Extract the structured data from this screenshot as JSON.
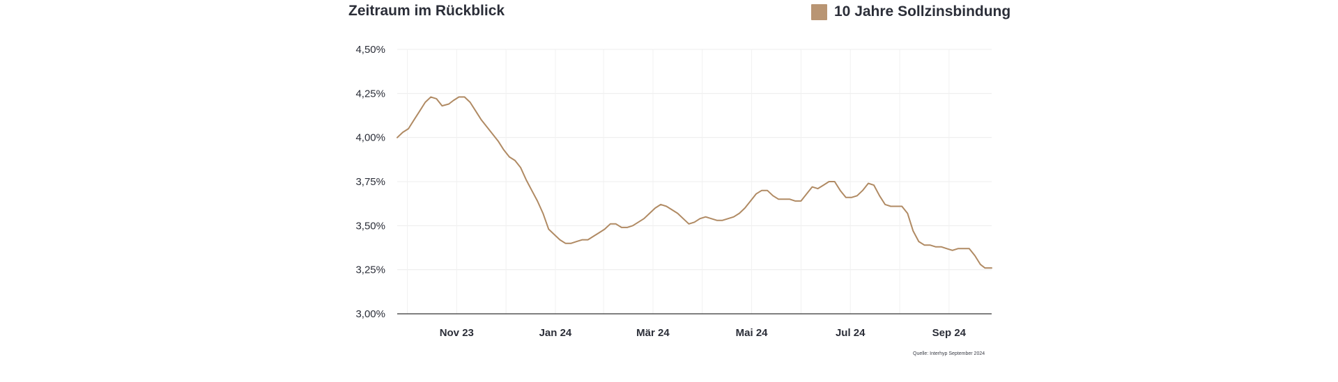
{
  "header": {
    "title": "Zeitraum im Rückblick"
  },
  "legend": {
    "label": "10 Jahre Sollzinsbindung",
    "color": "#b99573"
  },
  "source_note": "Quelle: Interhyp September 2024",
  "colors": {
    "line": "#b08a63",
    "grid": "#ececec",
    "axis": "#333333"
  },
  "chart_data": {
    "type": "line",
    "title": "Zeitraum im Rückblick",
    "xlabel": "",
    "ylabel": "",
    "x_unit": "weeks",
    "xlim": [
      0,
      53
    ],
    "ylim": [
      3.0,
      4.5
    ],
    "y_ticks": [
      3.0,
      3.25,
      3.5,
      3.75,
      4.0,
      4.25,
      4.5
    ],
    "y_tick_labels": [
      "3,00%",
      "3,25%",
      "3,50%",
      "3,75%",
      "4,00%",
      "4,25%",
      "4,50%"
    ],
    "x_tick_labels": [
      {
        "label": "Nov 23",
        "pos": 5.3
      },
      {
        "label": "Jan 24",
        "pos": 14.1
      },
      {
        "label": "Mär 24",
        "pos": 22.8
      },
      {
        "label": "Mai 24",
        "pos": 31.6
      },
      {
        "label": "Jul 24",
        "pos": 40.4
      },
      {
        "label": "Sep 24",
        "pos": 49.2
      }
    ],
    "grid": true,
    "legend_position": "top-right",
    "series": [
      {
        "name": "10 Jahre Sollzinsbindung",
        "color": "#b08a63",
        "points": [
          [
            0.0,
            4.0
          ],
          [
            0.5,
            4.03
          ],
          [
            1.0,
            4.05
          ],
          [
            1.5,
            4.1
          ],
          [
            2.0,
            4.15
          ],
          [
            2.5,
            4.2
          ],
          [
            3.0,
            4.23
          ],
          [
            3.5,
            4.22
          ],
          [
            4.0,
            4.18
          ],
          [
            4.6,
            4.19
          ],
          [
            5.0,
            4.21
          ],
          [
            5.5,
            4.23
          ],
          [
            6.0,
            4.23
          ],
          [
            6.5,
            4.2
          ],
          [
            7.0,
            4.15
          ],
          [
            7.5,
            4.1
          ],
          [
            8.0,
            4.06
          ],
          [
            8.5,
            4.02
          ],
          [
            9.0,
            3.98
          ],
          [
            9.5,
            3.93
          ],
          [
            10.0,
            3.89
          ],
          [
            10.5,
            3.87
          ],
          [
            11.0,
            3.83
          ],
          [
            11.5,
            3.76
          ],
          [
            12.0,
            3.7
          ],
          [
            12.5,
            3.64
          ],
          [
            13.0,
            3.57
          ],
          [
            13.5,
            3.48
          ],
          [
            14.0,
            3.45
          ],
          [
            14.5,
            3.42
          ],
          [
            15.0,
            3.4
          ],
          [
            15.5,
            3.4
          ],
          [
            16.0,
            3.41
          ],
          [
            16.5,
            3.42
          ],
          [
            17.0,
            3.42
          ],
          [
            17.5,
            3.44
          ],
          [
            18.0,
            3.46
          ],
          [
            18.5,
            3.48
          ],
          [
            19.0,
            3.51
          ],
          [
            19.5,
            3.51
          ],
          [
            20.0,
            3.49
          ],
          [
            20.5,
            3.49
          ],
          [
            21.0,
            3.5
          ],
          [
            21.5,
            3.52
          ],
          [
            22.0,
            3.54
          ],
          [
            22.5,
            3.57
          ],
          [
            23.0,
            3.6
          ],
          [
            23.5,
            3.62
          ],
          [
            24.0,
            3.61
          ],
          [
            24.5,
            3.59
          ],
          [
            25.0,
            3.57
          ],
          [
            25.5,
            3.54
          ],
          [
            26.0,
            3.51
          ],
          [
            26.5,
            3.52
          ],
          [
            27.0,
            3.54
          ],
          [
            27.5,
            3.55
          ],
          [
            28.0,
            3.54
          ],
          [
            28.5,
            3.53
          ],
          [
            29.0,
            3.53
          ],
          [
            29.5,
            3.54
          ],
          [
            30.0,
            3.55
          ],
          [
            30.5,
            3.57
          ],
          [
            31.0,
            3.6
          ],
          [
            31.5,
            3.64
          ],
          [
            32.0,
            3.68
          ],
          [
            32.5,
            3.7
          ],
          [
            33.0,
            3.7
          ],
          [
            33.5,
            3.67
          ],
          [
            34.0,
            3.65
          ],
          [
            34.5,
            3.65
          ],
          [
            35.0,
            3.65
          ],
          [
            35.5,
            3.64
          ],
          [
            36.0,
            3.64
          ],
          [
            36.5,
            3.68
          ],
          [
            37.0,
            3.72
          ],
          [
            37.5,
            3.71
          ],
          [
            38.0,
            3.73
          ],
          [
            38.5,
            3.75
          ],
          [
            39.0,
            3.75
          ],
          [
            39.5,
            3.7
          ],
          [
            40.0,
            3.66
          ],
          [
            40.5,
            3.66
          ],
          [
            41.0,
            3.67
          ],
          [
            41.5,
            3.7
          ],
          [
            42.0,
            3.74
          ],
          [
            42.5,
            3.73
          ],
          [
            43.0,
            3.67
          ],
          [
            43.5,
            3.62
          ],
          [
            44.0,
            3.61
          ],
          [
            44.5,
            3.61
          ],
          [
            45.0,
            3.61
          ],
          [
            45.5,
            3.57
          ],
          [
            46.0,
            3.47
          ],
          [
            46.5,
            3.41
          ],
          [
            47.0,
            3.39
          ],
          [
            47.5,
            3.39
          ],
          [
            48.0,
            3.38
          ],
          [
            48.5,
            3.38
          ],
          [
            49.0,
            3.37
          ],
          [
            49.5,
            3.36
          ],
          [
            50.0,
            3.37
          ],
          [
            50.5,
            3.37
          ],
          [
            51.0,
            3.37
          ],
          [
            51.5,
            3.33
          ],
          [
            52.0,
            3.28
          ],
          [
            52.4,
            3.26
          ],
          [
            53.0,
            3.26
          ]
        ]
      }
    ]
  }
}
